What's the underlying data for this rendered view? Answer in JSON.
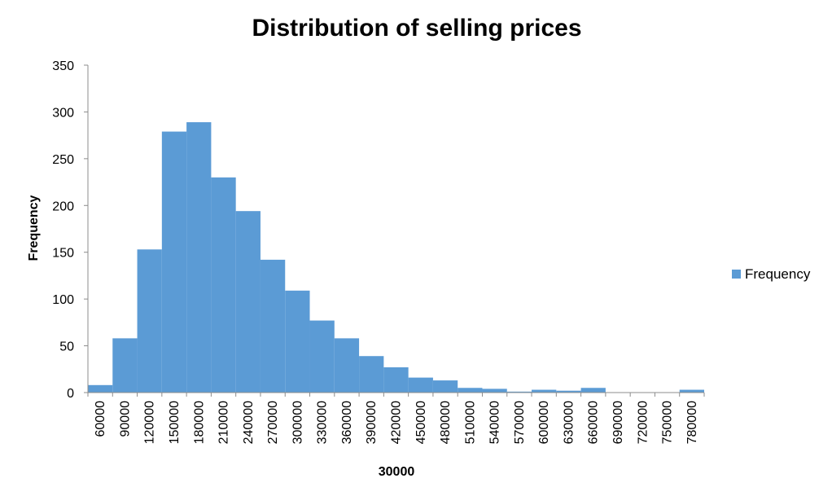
{
  "chart_data": {
    "type": "bar",
    "title": "Distribution of selling prices",
    "xlabel": "30000",
    "ylabel": "Frequency",
    "categories": [
      "60000",
      "90000",
      "120000",
      "150000",
      "180000",
      "210000",
      "240000",
      "270000",
      "300000",
      "330000",
      "360000",
      "390000",
      "420000",
      "450000",
      "480000",
      "510000",
      "540000",
      "570000",
      "600000",
      "630000",
      "660000",
      "690000",
      "720000",
      "750000",
      "780000"
    ],
    "series": [
      {
        "name": "Frequency",
        "values": [
          8,
          58,
          153,
          279,
          289,
          230,
          194,
          142,
          109,
          77,
          58,
          39,
          27,
          16,
          13,
          5,
          4,
          1,
          3,
          2,
          5,
          0,
          0,
          0,
          3
        ]
      }
    ],
    "ylim": [
      0,
      350
    ],
    "yticks": [
      0,
      50,
      100,
      150,
      200,
      250,
      300,
      350
    ],
    "legend_position": "right",
    "grid": false,
    "bar_color": "#5b9bd5",
    "axis_color": "#8c8c8c"
  }
}
